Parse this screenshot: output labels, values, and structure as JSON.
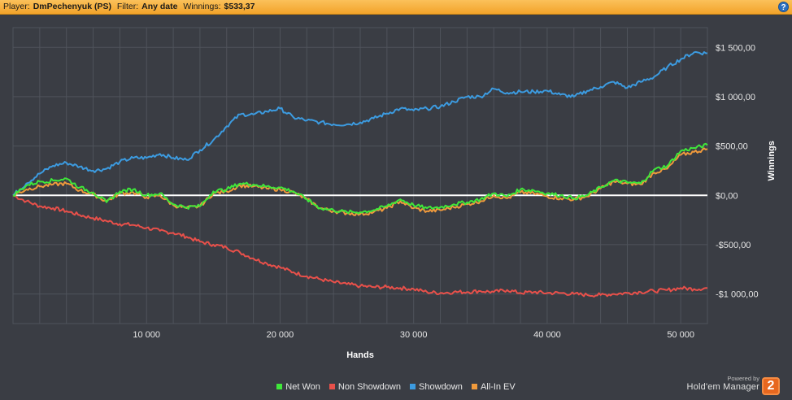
{
  "header": {
    "player_label": "Player:",
    "player_value": "DmPechenyuk (PS)",
    "filter_label": "Filter:",
    "filter_value": "Any date",
    "winnings_label": "Winnings:",
    "winnings_value": "$533,37",
    "help_glyph": "?",
    "help_icon": "help-icon"
  },
  "legend": {
    "items": [
      {
        "label": "Net Won",
        "color": "#3fe83a"
      },
      {
        "label": "Non Showdown",
        "color": "#e8504a"
      },
      {
        "label": "Showdown",
        "color": "#3c9be0"
      },
      {
        "label": "All-In EV",
        "color": "#f09a3c"
      }
    ]
  },
  "branding": {
    "powered_by": "Powered by",
    "name": "Hold'em Manager",
    "logo_text": "2"
  },
  "colors": {
    "background": "#3a3d44",
    "grid": "#4f535b",
    "zero_line": "#ffffff",
    "header": "#f6ab33"
  },
  "chart_data": {
    "type": "line",
    "xlabel": "Hands",
    "ylabel": "Winnings",
    "xlim": [
      0,
      52000
    ],
    "ylim": [
      -1300,
      1700
    ],
    "x_ticks": [
      10000,
      20000,
      30000,
      40000,
      50000
    ],
    "x_tick_labels": [
      "10 000",
      "20 000",
      "30 000",
      "40 000",
      "50 000"
    ],
    "y_ticks": [
      1500,
      1000,
      500,
      0,
      -500,
      -1000
    ],
    "y_tick_labels": [
      "$1 500,00",
      "$1 000,00",
      "$500,00",
      "$0,00",
      "-$500,00",
      "-$1 000,00"
    ],
    "x": [
      0,
      1000,
      2000,
      3000,
      4000,
      5000,
      6000,
      7000,
      8000,
      9000,
      10000,
      11000,
      12000,
      13000,
      14000,
      15000,
      16000,
      17000,
      18000,
      19000,
      20000,
      21000,
      22000,
      23000,
      24000,
      25000,
      26000,
      27000,
      28000,
      29000,
      30000,
      31000,
      32000,
      33000,
      34000,
      35000,
      36000,
      37000,
      38000,
      39000,
      40000,
      41000,
      42000,
      43000,
      44000,
      45000,
      46000,
      47000,
      48000,
      49000,
      50000,
      51000,
      52000
    ],
    "series": [
      {
        "name": "Net Won",
        "color": "#3fe83a",
        "values": [
          0,
          100,
          140,
          150,
          170,
          80,
          30,
          -70,
          40,
          60,
          0,
          20,
          -90,
          -120,
          -110,
          40,
          60,
          120,
          110,
          90,
          80,
          40,
          -40,
          -130,
          -150,
          -170,
          -170,
          -150,
          -110,
          -40,
          -100,
          -130,
          -120,
          -90,
          -70,
          -40,
          20,
          -10,
          60,
          50,
          20,
          0,
          -30,
          0,
          80,
          150,
          130,
          120,
          260,
          300,
          450,
          480,
          510
        ]
      },
      {
        "name": "Non Showdown",
        "color": "#e8504a",
        "values": [
          0,
          -60,
          -110,
          -130,
          -160,
          -200,
          -230,
          -260,
          -290,
          -300,
          -330,
          -360,
          -380,
          -420,
          -470,
          -500,
          -530,
          -580,
          -640,
          -690,
          -730,
          -780,
          -820,
          -850,
          -880,
          -900,
          -920,
          -930,
          -930,
          -940,
          -950,
          -980,
          -990,
          -980,
          -980,
          -970,
          -980,
          -960,
          -990,
          -980,
          -990,
          -990,
          -1000,
          -1010,
          -1010,
          -1000,
          -990,
          -980,
          -970,
          -960,
          -940,
          -950,
          -940
        ]
      },
      {
        "name": "Showdown",
        "color": "#3c9be0",
        "values": [
          0,
          120,
          220,
          300,
          330,
          290,
          250,
          270,
          340,
          380,
          380,
          420,
          380,
          360,
          460,
          560,
          700,
          820,
          820,
          850,
          880,
          790,
          760,
          740,
          720,
          720,
          740,
          780,
          830,
          880,
          860,
          880,
          900,
          950,
          1000,
          1000,
          1080,
          1040,
          1050,
          1050,
          1060,
          1020,
          1000,
          1060,
          1100,
          1150,
          1090,
          1150,
          1200,
          1300,
          1380,
          1450,
          1440
        ]
      },
      {
        "name": "All-In EV",
        "color": "#f09a3c",
        "values": [
          0,
          60,
          90,
          110,
          120,
          50,
          10,
          -60,
          20,
          30,
          -20,
          0,
          -100,
          -130,
          -110,
          20,
          40,
          100,
          90,
          70,
          60,
          30,
          -40,
          -130,
          -160,
          -180,
          -190,
          -170,
          -130,
          -60,
          -130,
          -160,
          -150,
          -120,
          -90,
          -60,
          0,
          -30,
          30,
          20,
          -10,
          -30,
          -40,
          -10,
          70,
          140,
          120,
          110,
          230,
          270,
          410,
          440,
          470
        ]
      }
    ]
  }
}
